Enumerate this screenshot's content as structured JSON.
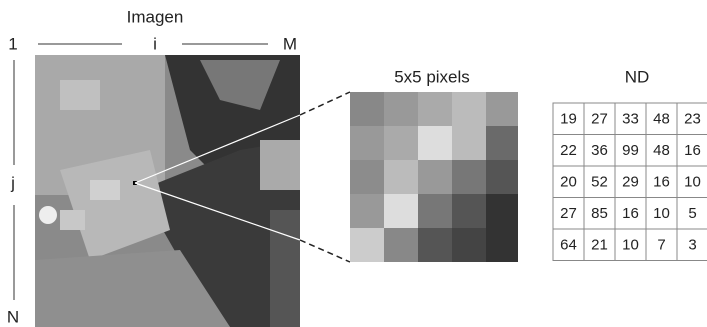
{
  "header": {
    "title": "Imagen"
  },
  "axes": {
    "top_start": "1",
    "top_mid": "i",
    "top_end": "M",
    "left_mid": "j",
    "left_end": "N"
  },
  "zoom": {
    "title": "5x5 pixels"
  },
  "table": {
    "title": "ND",
    "rows": [
      [
        "19",
        "27",
        "33",
        "48",
        "23"
      ],
      [
        "22",
        "36",
        "99",
        "48",
        "16"
      ],
      [
        "20",
        "52",
        "29",
        "16",
        "10"
      ],
      [
        "27",
        "85",
        "16",
        "10",
        "5"
      ],
      [
        "64",
        "21",
        "10",
        "7",
        "3"
      ]
    ]
  }
}
